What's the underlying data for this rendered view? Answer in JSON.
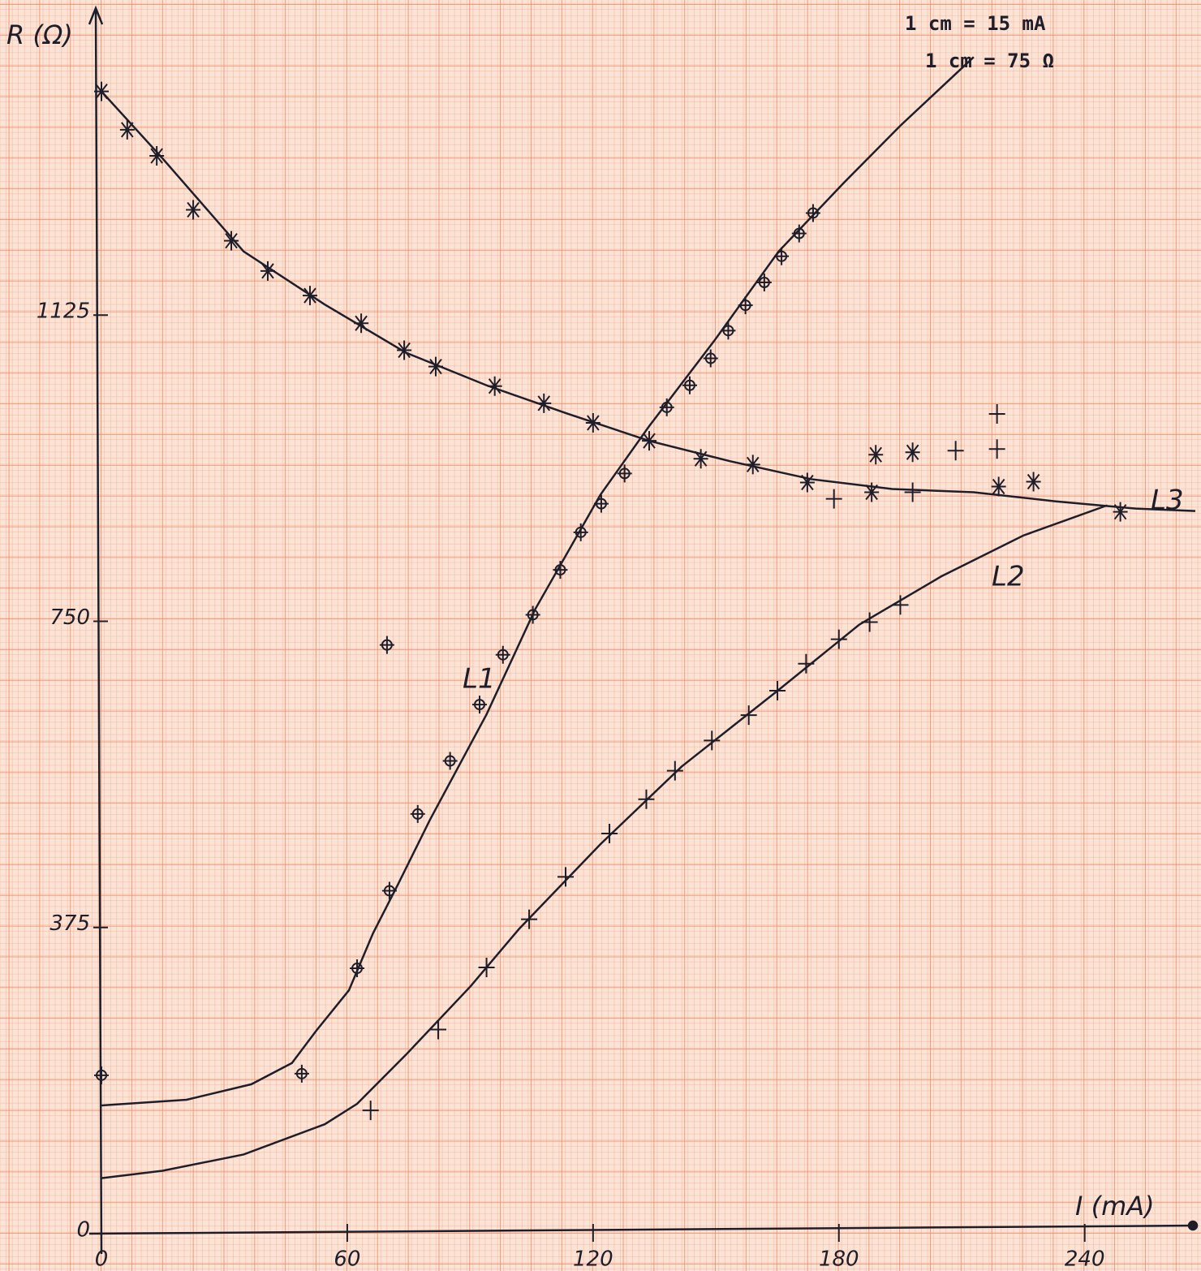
{
  "chart_data": {
    "type": "scatter",
    "x_label": "I (mA)",
    "y_label": "R (Ω)",
    "annotations": [
      "1 cm = 15 mA",
      "1 cm = 75 Ω"
    ],
    "xlim": [
      0,
      267
    ],
    "ylim": [
      0,
      1496
    ],
    "xticks": [
      0,
      60,
      120,
      180,
      240
    ],
    "yticks": [
      0,
      375,
      750,
      1125
    ],
    "color": "#1e1e2a",
    "series": [
      {
        "name": "L1",
        "marker": "circle-plus",
        "x": [
          0,
          48.9,
          62.4,
          70.3,
          69.7,
          77.2,
          85.1,
          92.3,
          98,
          105.3,
          112,
          117,
          122,
          127.7,
          138,
          143.6,
          148.7,
          153,
          157.2,
          161.8,
          166,
          170.3,
          173.7
        ],
        "y": [
          194,
          196,
          325,
          420,
          721,
          514,
          579,
          648,
          709,
          758,
          813,
          859,
          894,
          931,
          1012,
          1039,
          1072,
          1106,
          1137,
          1165,
          1197,
          1225,
          1250
        ],
        "curve": {
          "x": [
            0,
            20.8,
            36.6,
            46.5,
            52.5,
            60.4,
            66.3,
            72.3,
            80.2,
            94,
            105.9,
            121.8,
            133.7,
            149.5,
            165.3,
            181.2,
            195,
            212.9
          ],
          "y": [
            157,
            164,
            183,
            209,
            249,
            298,
            368,
            427,
            507,
            636,
            765,
            905,
            989,
            1093,
            1203,
            1287,
            1357,
            1441
          ]
        }
      },
      {
        "name": "L2",
        "marker": "plus",
        "x": [
          65.7,
          82.2,
          94,
          104.4,
          113.3,
          124,
          133,
          140,
          149,
          158,
          165,
          172,
          180,
          187.5,
          195,
          178.8,
          198,
          208.5,
          218.6,
          218.6
        ],
        "y": [
          151,
          250,
          326,
          385,
          437,
          490,
          532,
          567,
          604,
          635,
          665,
          698,
          728,
          749,
          770,
          900,
          908,
          959,
          961,
          1004
        ],
        "curve": {
          "x": [
            0,
            14.9,
            34.7,
            54.5,
            62.4,
            74.3,
            90.1,
            101.9,
            121.8,
            141.6,
            165.3,
            185,
            205,
            225,
            245.5
          ],
          "y": [
            68,
            77,
            97,
            134,
            159,
            219,
            303,
            373,
            477,
            572,
            666,
            746,
            805,
            855,
            892
          ]
        }
      },
      {
        "name": "L3",
        "marker": "asterisk",
        "x": [
          0,
          6.3,
          13.5,
          22.4,
          31.7,
          40.6,
          50.9,
          63.4,
          73.9,
          81.6,
          96,
          108,
          120,
          133.7,
          146.3,
          159,
          172.3,
          188,
          189,
          198,
          219,
          227.5,
          248.7
        ],
        "y": [
          1399,
          1352,
          1320,
          1254,
          1216,
          1179,
          1149,
          1115,
          1082,
          1062,
          1038,
          1017,
          993,
          971,
          949,
          942,
          920,
          908,
          954,
          957,
          915,
          921,
          884
        ],
        "curve": {
          "x": [
            0,
            14.9,
            34.7,
            54.5,
            74.3,
            94,
            113.9,
            133.7,
            153.5,
            173.3,
            193,
            212.9,
            232.7,
            252.5,
            267
          ],
          "y": [
            1399,
            1317,
            1203,
            1138,
            1079,
            1039,
            1004,
            971,
            946,
            924,
            912,
            908,
            897,
            888,
            885
          ]
        }
      }
    ]
  }
}
